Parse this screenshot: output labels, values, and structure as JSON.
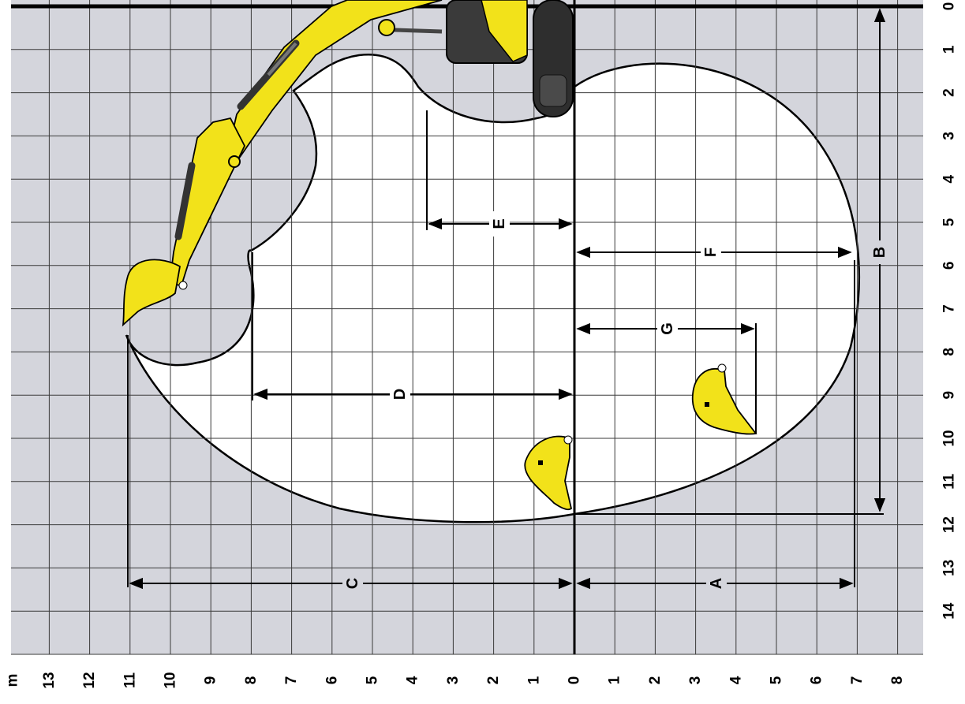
{
  "diagram": {
    "unit": "m",
    "vertical_axis_ticks": [
      "0",
      "1",
      "2",
      "3",
      "4",
      "5",
      "6",
      "7",
      "8",
      "9",
      "10",
      "11",
      "12",
      "13",
      "14"
    ],
    "horizontal_axis_ticks": [
      "13",
      "12",
      "11",
      "10",
      "9",
      "8",
      "7",
      "6",
      "5",
      "4",
      "3",
      "2",
      "1",
      "0",
      "1",
      "2",
      "3",
      "4",
      "5",
      "6",
      "7",
      "8"
    ],
    "dimensions": {
      "A": "A",
      "B": "B",
      "C": "C",
      "D": "D",
      "E": "E",
      "F": "F",
      "G": "G"
    },
    "colors": {
      "grid_background": "#d4d5dc",
      "working_area": "#ffffff",
      "machine_yellow": "#f2e21a",
      "machine_dark": "#2e2e2e",
      "grid_lines": "#3a3a3a",
      "axis_lines": "#000000"
    }
  }
}
